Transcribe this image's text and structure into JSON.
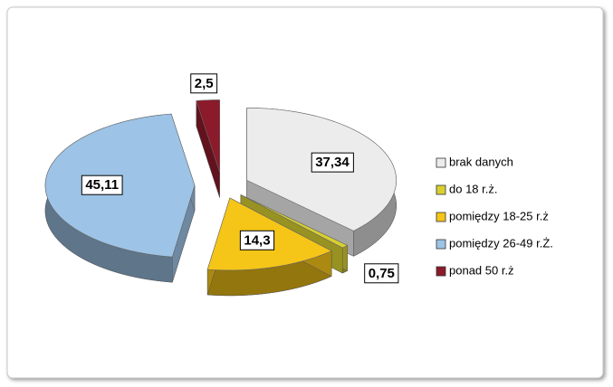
{
  "chart_data": {
    "type": "pie",
    "categories": [
      "brak danych",
      "do 18 r.ż.",
      "pomiędzy 18-25 r.ż",
      "pomiędzy 26-49 r.Ż.",
      "ponad 50 r.ż"
    ],
    "values": [
      37.34,
      0.75,
      14.3,
      45.11,
      2.5
    ],
    "value_labels": [
      "37,34",
      "0,75",
      "14,3",
      "45,11",
      "2,5"
    ],
    "colors": [
      "#ececec",
      "#d8d030",
      "#f5c518",
      "#9dc3e6",
      "#8b1a2a"
    ],
    "legend": "right"
  }
}
